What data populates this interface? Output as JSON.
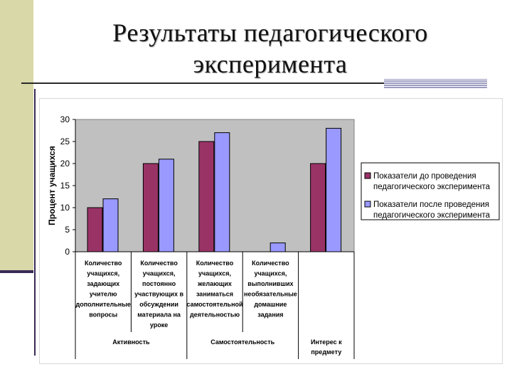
{
  "slide": {
    "title_line1": "Результаты педагогического",
    "title_line2": "эксперимента"
  },
  "chart_data": {
    "type": "bar",
    "title": "",
    "ylabel": "Процент учащихся",
    "ylim": [
      0,
      30
    ],
    "yticks": [
      "0",
      "5",
      "10",
      "15",
      "20",
      "25",
      "30"
    ],
    "grid": false,
    "legend_position": "right",
    "categories": [
      [
        "Количество",
        "учащихся,",
        "задающих",
        "учителю",
        "дополнительные",
        "вопросы"
      ],
      [
        "Количество",
        "учащихся,",
        "постоянно",
        "участвующих в",
        "обсуждении",
        "материала на",
        "уроке"
      ],
      [
        "Количество",
        "учащихся,",
        "желающих",
        "заниматься",
        "самостоятельной",
        "деятельностью"
      ],
      [
        "Количество",
        "учащихся,",
        "выполнивших",
        "необязательные",
        "домашние",
        "задания"
      ],
      []
    ],
    "groups": [
      {
        "label": "Активность",
        "span": [
          0,
          1
        ]
      },
      {
        "label": "Самостоятельность",
        "span": [
          2,
          3
        ]
      },
      {
        "label": "Интерес к предмету",
        "lines": [
          "Интерес к",
          "предмету"
        ],
        "span": [
          4,
          4
        ]
      }
    ],
    "series": [
      {
        "name_lines": [
          "Показатели до проведения",
          "педагогического эксперимента"
        ],
        "color": "#993366",
        "values": [
          10,
          20,
          25,
          0,
          20
        ]
      },
      {
        "name_lines": [
          "Показатели после проведения",
          "педагогического эксперимента"
        ],
        "color": "#9999ff",
        "values": [
          12,
          21,
          27,
          2,
          28
        ]
      }
    ],
    "plot_background": "#c0c0c0"
  }
}
